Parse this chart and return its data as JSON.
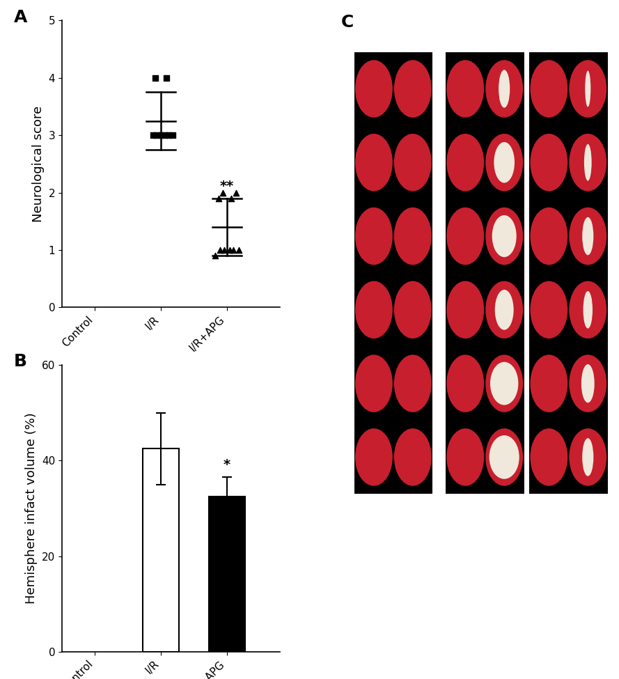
{
  "panel_A_label": "A",
  "panel_B_label": "B",
  "panel_C_label": "C",
  "scatter_groups": [
    "Control",
    "I/R",
    "I/R+APG"
  ],
  "IR_points": [
    3.0,
    3.0,
    3.0,
    3.0,
    3.0,
    3.0,
    4.0,
    4.0
  ],
  "IR_mean": 3.25,
  "IR_sd_upper": 3.75,
  "IR_sd_lower": 2.75,
  "APG_points": [
    0.9,
    1.0,
    1.0,
    1.0,
    1.0,
    1.0,
    1.9,
    1.9,
    2.0,
    2.0
  ],
  "APG_mean": 1.4,
  "APG_sd_upper": 1.9,
  "APG_sd_lower": 0.9,
  "scatter_ylim": [
    0,
    5
  ],
  "scatter_yticks": [
    0,
    1,
    2,
    3,
    4,
    5
  ],
  "scatter_ylabel": "Neurological score",
  "bar_categories": [
    "Control",
    "I/R",
    "I/R+APG"
  ],
  "bar_values": [
    0,
    42.5,
    32.5
  ],
  "bar_errors": [
    0,
    7.5,
    4.0
  ],
  "bar_colors": [
    "#ffffff",
    "#ffffff",
    "#000000"
  ],
  "bar_edge_colors": [
    "#000000",
    "#000000",
    "#000000"
  ],
  "bar_ylabel": "Hemisphere infact volume (%)",
  "bar_ylim": [
    0,
    60
  ],
  "bar_yticks": [
    0,
    20,
    40,
    60
  ],
  "significance_A": "**",
  "significance_B": "*",
  "label_fontsize": 13,
  "tick_fontsize": 11,
  "panel_label_fontsize": 18,
  "brain_slice_red": [
    0.78,
    0.12,
    0.18
  ],
  "brain_slice_white": [
    0.94,
    0.91,
    0.86
  ],
  "brain_slice_dark_red": [
    0.65,
    0.08,
    0.12
  ]
}
